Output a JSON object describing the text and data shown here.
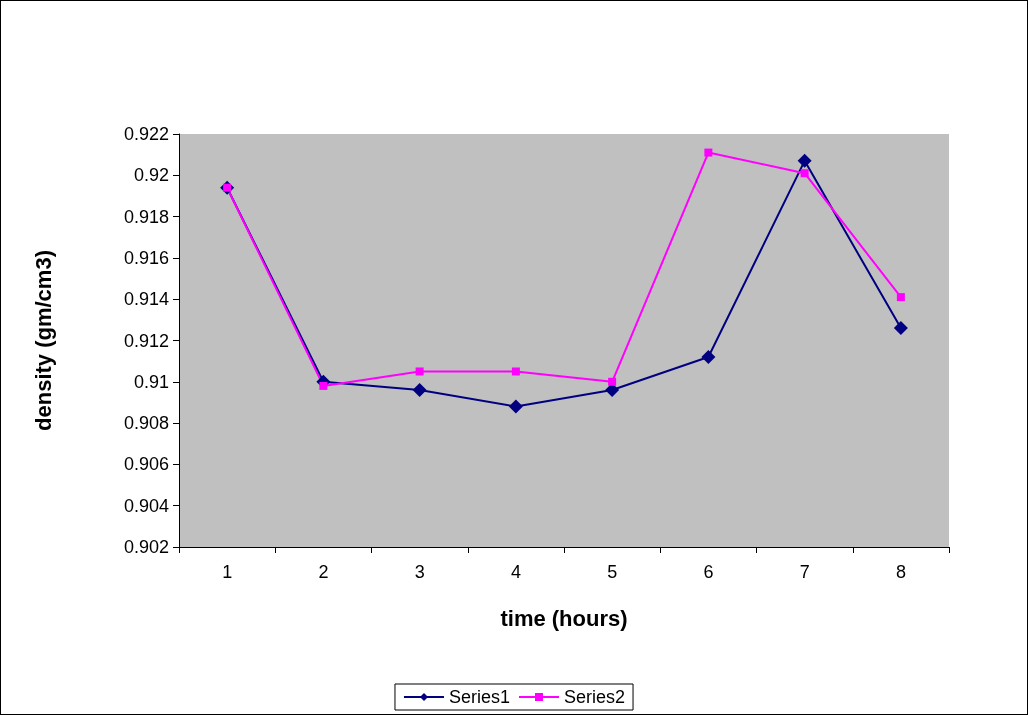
{
  "chart_data": {
    "type": "line",
    "xlabel": "time (hours)",
    "ylabel": "density (gm/cm3)",
    "categories": [
      "1",
      "2",
      "3",
      "4",
      "5",
      "6",
      "7",
      "8"
    ],
    "series": [
      {
        "name": "Series1",
        "color": "#000080",
        "marker": "diamond",
        "values": [
          0.9194,
          0.91,
          0.9096,
          0.9088,
          0.9096,
          0.9112,
          0.9207,
          0.9126
        ]
      },
      {
        "name": "Series2",
        "color": "#ff00ff",
        "marker": "square",
        "values": [
          0.9194,
          0.9098,
          0.9105,
          0.9105,
          0.91,
          0.9211,
          0.9201,
          0.9141
        ]
      }
    ],
    "ylim": [
      0.902,
      0.922
    ],
    "yticks": [
      0.902,
      0.904,
      0.906,
      0.908,
      0.91,
      0.912,
      0.914,
      0.916,
      0.918,
      0.92,
      0.922
    ],
    "grid": false,
    "legend": "bottom",
    "line_style": "solid"
  }
}
